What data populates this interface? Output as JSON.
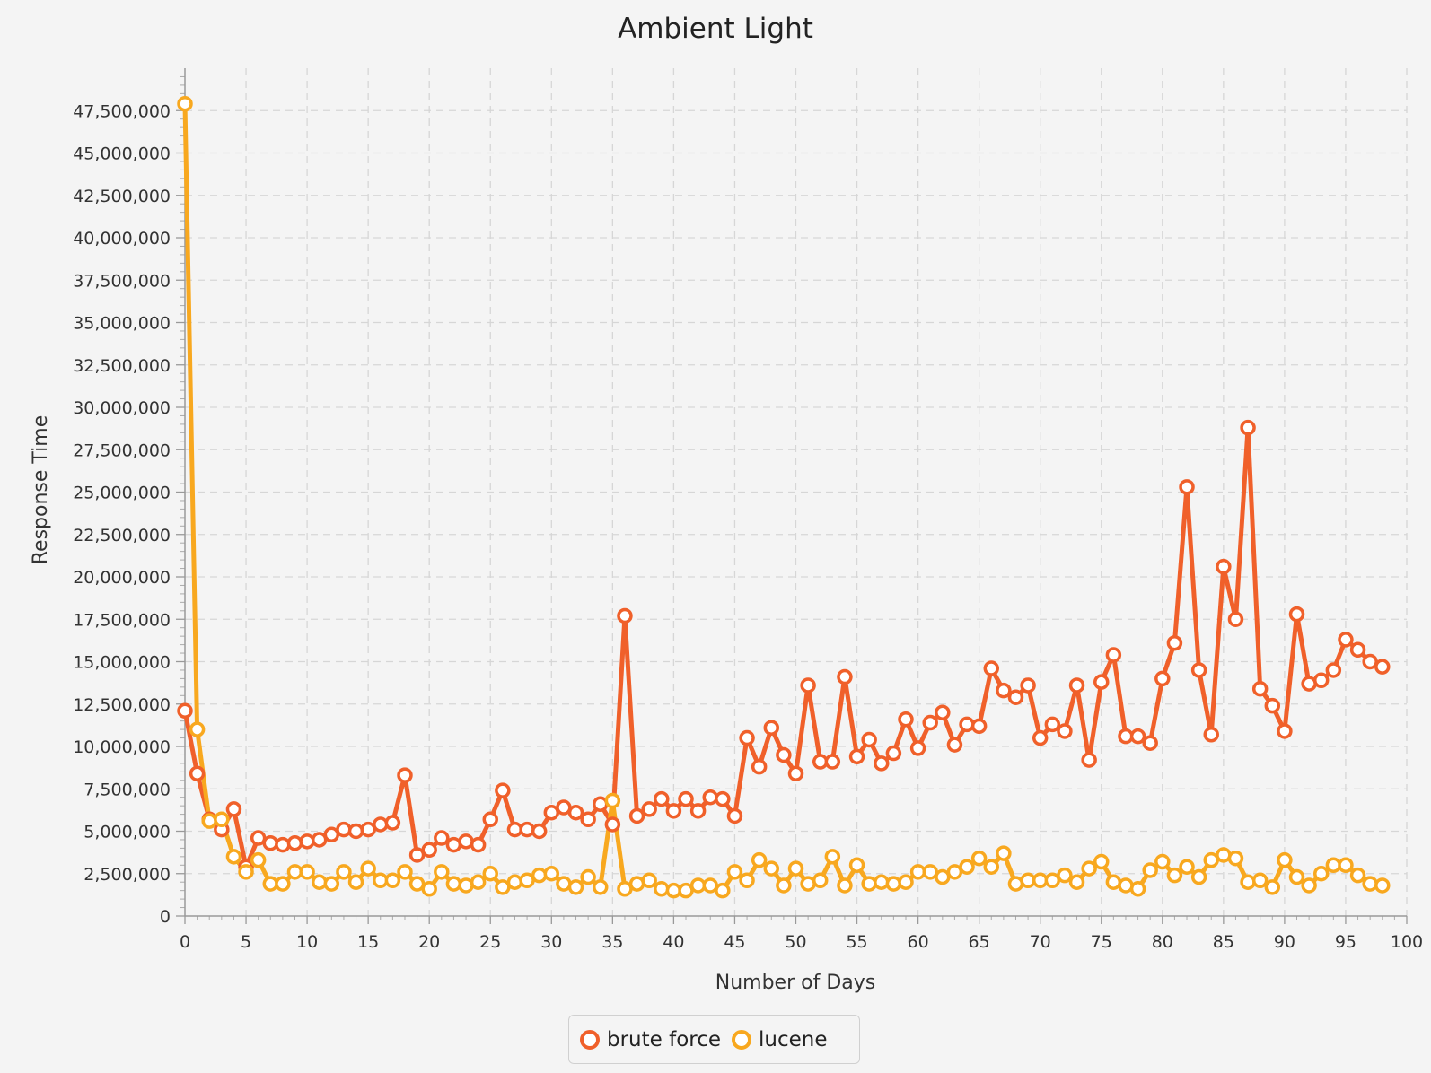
{
  "chart_data": {
    "type": "line",
    "title": "Ambient Light",
    "xlabel": "Number of Days",
    "ylabel": "Response Time",
    "xlim": [
      0,
      100
    ],
    "ylim": [
      0,
      50000000
    ],
    "x_ticks": [
      "0",
      "5",
      "10",
      "15",
      "20",
      "25",
      "30",
      "35",
      "40",
      "45",
      "50",
      "55",
      "60",
      "65",
      "70",
      "75",
      "80",
      "85",
      "90",
      "95",
      "100"
    ],
    "y_ticks": [
      "0",
      "2,500,000",
      "5,000,000",
      "7,500,000",
      "10,000,000",
      "12,500,000",
      "15,000,000",
      "17,500,000",
      "20,000,000",
      "22,500,000",
      "25,000,000",
      "27,500,000",
      "30,000,000",
      "32,500,000",
      "35,000,000",
      "37,500,000",
      "40,000,000",
      "42,500,000",
      "45,000,000",
      "47,500,000"
    ],
    "grid": true,
    "legend_position": "bottom",
    "series": [
      {
        "name": "brute force",
        "color": "#f0602a",
        "values": [
          12100000,
          8400000,
          5700000,
          5100000,
          6300000,
          2900000,
          4600000,
          4300000,
          4200000,
          4300000,
          4400000,
          4500000,
          4800000,
          5100000,
          5000000,
          5100000,
          5400000,
          5500000,
          8300000,
          3600000,
          3900000,
          4600000,
          4200000,
          4400000,
          4200000,
          5700000,
          7400000,
          5100000,
          5100000,
          5000000,
          6100000,
          6400000,
          6100000,
          5700000,
          6600000,
          5400000,
          17700000,
          5900000,
          6300000,
          6900000,
          6200000,
          6900000,
          6200000,
          7000000,
          6900000,
          5900000,
          10500000,
          8800000,
          11100000,
          9500000,
          8400000,
          13600000,
          9100000,
          9100000,
          14100000,
          9400000,
          10400000,
          9000000,
          9600000,
          11600000,
          9900000,
          11400000,
          12000000,
          10100000,
          11300000,
          11200000,
          14600000,
          13300000,
          12900000,
          13600000,
          10500000,
          11300000,
          10900000,
          13600000,
          9200000,
          13800000,
          15400000,
          10600000,
          10600000,
          10200000,
          14000000,
          16100000,
          25300000,
          14500000,
          10700000,
          20600000,
          17500000,
          28800000,
          13400000,
          12400000,
          10900000,
          17800000,
          13700000,
          13900000,
          14500000,
          16300000,
          15700000,
          15000000,
          14700000
        ]
      },
      {
        "name": "lucene",
        "color": "#f8a81f",
        "values": [
          47900000,
          11000000,
          5600000,
          5700000,
          3500000,
          2600000,
          3300000,
          1900000,
          1900000,
          2600000,
          2600000,
          2000000,
          1900000,
          2600000,
          2000000,
          2800000,
          2100000,
          2100000,
          2600000,
          1900000,
          1600000,
          2600000,
          1900000,
          1800000,
          2000000,
          2500000,
          1700000,
          2000000,
          2100000,
          2400000,
          2500000,
          1900000,
          1700000,
          2300000,
          1700000,
          6800000,
          1600000,
          1900000,
          2100000,
          1600000,
          1500000,
          1500000,
          1800000,
          1800000,
          1500000,
          2600000,
          2100000,
          3300000,
          2800000,
          1800000,
          2800000,
          1900000,
          2100000,
          3500000,
          1800000,
          3000000,
          1900000,
          2000000,
          1900000,
          2000000,
          2600000,
          2600000,
          2300000,
          2600000,
          2900000,
          3400000,
          2900000,
          3700000,
          1900000,
          2100000,
          2100000,
          2100000,
          2400000,
          2000000,
          2800000,
          3200000,
          2000000,
          1800000,
          1600000,
          2700000,
          3200000,
          2400000,
          2900000,
          2300000,
          3300000,
          3600000,
          3400000,
          2000000,
          2100000,
          1700000,
          3300000,
          2300000,
          1800000,
          2500000,
          3000000,
          3000000,
          2400000,
          1900000,
          1800000
        ]
      }
    ]
  }
}
